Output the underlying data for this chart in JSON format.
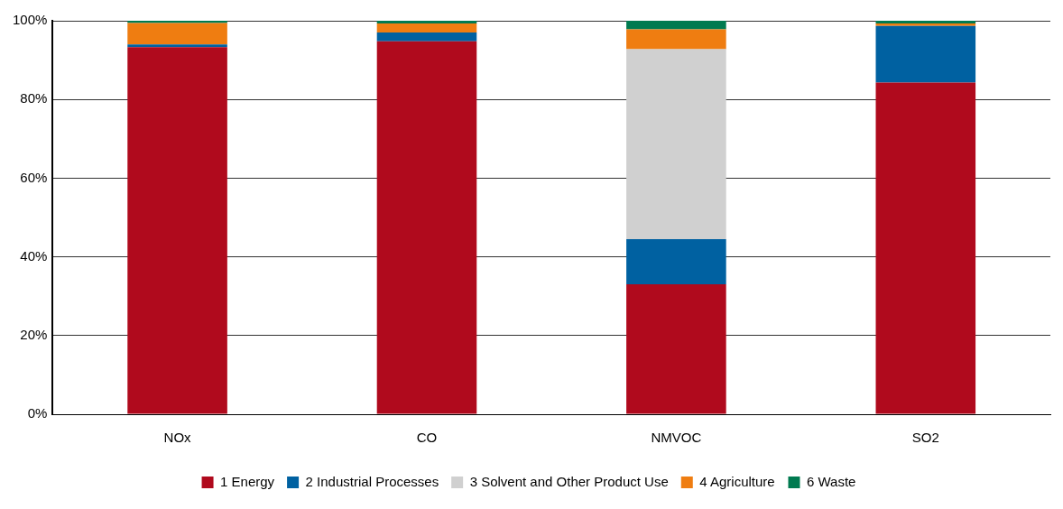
{
  "chart_data": {
    "type": "bar",
    "stacked": true,
    "categories": [
      "NOx",
      "CO",
      "NMVOC",
      "SO2"
    ],
    "series": [
      {
        "name": "1 Energy",
        "color": "#b00a1d",
        "values": [
          93.3,
          94.8,
          33.0,
          84.3
        ]
      },
      {
        "name": "2 Industrial Processes",
        "color": "#0061a1",
        "values": [
          0.7,
          2.2,
          11.5,
          14.4
        ]
      },
      {
        "name": "3 Solvent and Other Product Use",
        "color": "#d0d0d0",
        "values": [
          0,
          0,
          48.3,
          0
        ]
      },
      {
        "name": "4 Agriculture",
        "color": "#ef7d11",
        "values": [
          5.4,
          2.3,
          5.0,
          0.6
        ]
      },
      {
        "name": "6 Waste",
        "color": "#007a50",
        "values": [
          0.6,
          0.7,
          2.2,
          0.7
        ]
      }
    ],
    "ylim": [
      0,
      100
    ],
    "yticks": [
      {
        "value": 0,
        "label": "0%"
      },
      {
        "value": 20,
        "label": "20%"
      },
      {
        "value": 40,
        "label": "40%"
      },
      {
        "value": 60,
        "label": "60%"
      },
      {
        "value": 80,
        "label": "80%"
      },
      {
        "value": 100,
        "label": "100%"
      }
    ],
    "grid": "y",
    "legend": "bottom"
  }
}
